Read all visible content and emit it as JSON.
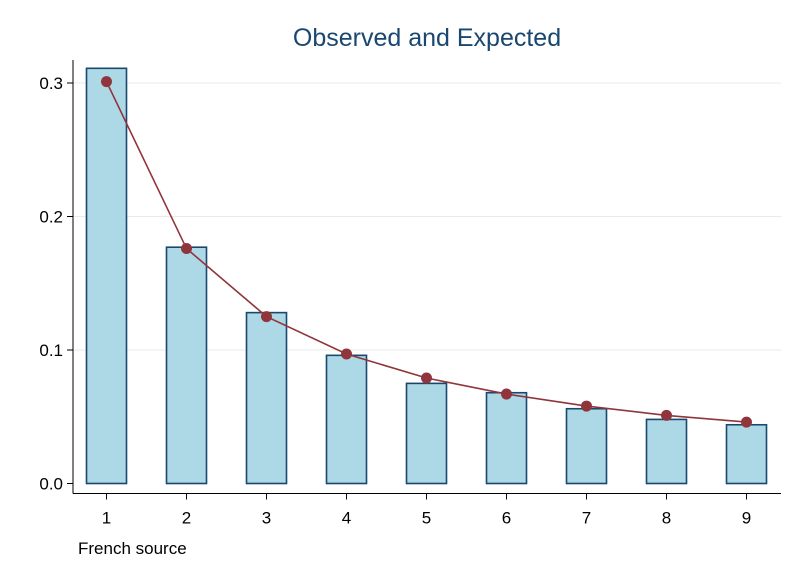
{
  "chart_data": {
    "type": "bar",
    "title": "Observed and Expected",
    "xlabel": "French source",
    "ylabel": "",
    "categories": [
      "1",
      "2",
      "3",
      "4",
      "5",
      "6",
      "7",
      "8",
      "9"
    ],
    "yticks": [
      "0.0",
      "0.1",
      "0.2",
      "0.3"
    ],
    "ylim": [
      0,
      0.32
    ],
    "grid": true,
    "series": [
      {
        "kind": "bar",
        "values": [
          0.311,
          0.177,
          0.128,
          0.096,
          0.075,
          0.068,
          0.056,
          0.048,
          0.044
        ]
      },
      {
        "kind": "line",
        "values": [
          0.301,
          0.176,
          0.125,
          0.097,
          0.079,
          0.067,
          0.058,
          0.051,
          0.046
        ]
      }
    ],
    "colors": {
      "bar_fill": "#add8e6",
      "bar_stroke": "#1a476f",
      "line": "#90353b",
      "title": "#1a476f",
      "grid": "#eaeaea",
      "axis": "#000000"
    }
  }
}
